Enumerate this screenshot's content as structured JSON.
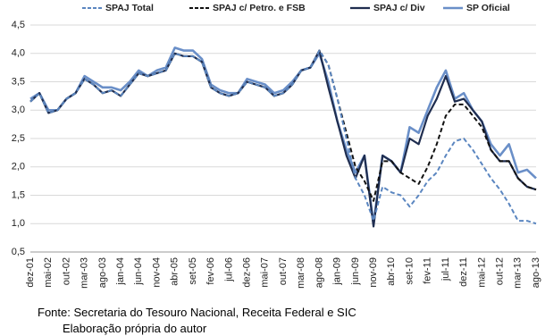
{
  "chart_data": {
    "type": "line",
    "categories": [
      "dez-01",
      null,
      "mai-02",
      null,
      "out-02",
      null,
      "mar-03",
      null,
      "ago-03",
      null,
      "jan-04",
      null,
      "jun-04",
      null,
      "nov-04",
      null,
      "abr-05",
      null,
      "set-05",
      null,
      "fev-06",
      null,
      "jul-06",
      null,
      "dez-06",
      null,
      "mai-07",
      null,
      "out-07",
      null,
      "mar-08",
      null,
      "ago-08",
      null,
      "jan-09",
      null,
      "jun-09",
      null,
      "nov-09",
      null,
      "abr-10",
      null,
      "set-10",
      null,
      "fev-11",
      null,
      "jul-11",
      null,
      "dez-11",
      null,
      "mai-12",
      null,
      "out-12",
      null,
      "mar-13",
      null,
      "ago-13"
    ],
    "series": [
      {
        "name": "SPAJ Total",
        "color": "#5b86c0",
        "dashed": true,
        "width": 2,
        "values": [
          3.15,
          3.3,
          2.95,
          3.0,
          3.2,
          3.3,
          3.55,
          3.45,
          3.3,
          3.35,
          3.25,
          3.45,
          3.65,
          3.6,
          3.65,
          3.7,
          4.0,
          3.95,
          3.95,
          3.85,
          3.4,
          3.3,
          3.25,
          3.3,
          3.5,
          3.45,
          3.4,
          3.25,
          3.3,
          3.45,
          3.7,
          3.75,
          4.05,
          3.8,
          3.2,
          2.5,
          1.8,
          1.5,
          1.05,
          1.65,
          1.55,
          1.5,
          1.3,
          1.5,
          1.75,
          1.9,
          2.2,
          2.45,
          2.5,
          2.3,
          2.05,
          1.8,
          1.6,
          1.35,
          1.05,
          1.05,
          1.0
        ]
      },
      {
        "name": "SPAJ c/ Petro. e FSB",
        "color": "#111111",
        "dashed": true,
        "width": 2,
        "values": [
          3.15,
          3.3,
          2.95,
          3.0,
          3.2,
          3.3,
          3.55,
          3.45,
          3.3,
          3.35,
          3.25,
          3.45,
          3.65,
          3.6,
          3.65,
          3.7,
          4.0,
          3.95,
          3.95,
          3.85,
          3.4,
          3.3,
          3.25,
          3.3,
          3.5,
          3.45,
          3.4,
          3.25,
          3.3,
          3.45,
          3.7,
          3.75,
          4.05,
          3.8,
          3.2,
          2.6,
          2.0,
          1.75,
          1.4,
          2.1,
          2.1,
          1.9,
          1.8,
          1.7,
          2.0,
          2.4,
          2.9,
          3.1,
          3.1,
          2.9,
          2.7,
          2.3,
          2.1,
          2.1,
          1.8,
          1.65,
          1.6
        ]
      },
      {
        "name": "SPAJ c/ Div",
        "color": "#1f2d4f",
        "dashed": false,
        "width": 2.2,
        "values": [
          3.15,
          3.3,
          2.95,
          3.0,
          3.2,
          3.3,
          3.55,
          3.45,
          3.3,
          3.35,
          3.25,
          3.45,
          3.65,
          3.6,
          3.65,
          3.7,
          4.0,
          3.95,
          3.95,
          3.85,
          3.4,
          3.3,
          3.25,
          3.3,
          3.5,
          3.45,
          3.4,
          3.25,
          3.3,
          3.45,
          3.7,
          3.75,
          4.05,
          3.4,
          2.8,
          2.2,
          1.8,
          2.2,
          0.95,
          2.2,
          2.1,
          1.9,
          2.5,
          2.4,
          2.9,
          3.2,
          3.6,
          3.15,
          3.2,
          3.0,
          2.8,
          2.3,
          2.1,
          2.1,
          1.8,
          1.65,
          1.6
        ]
      },
      {
        "name": "SP Oficial",
        "color": "#6a8fc8",
        "dashed": false,
        "width": 2.6,
        "values": [
          3.2,
          3.3,
          3.0,
          3.0,
          3.2,
          3.3,
          3.6,
          3.5,
          3.4,
          3.4,
          3.35,
          3.5,
          3.7,
          3.6,
          3.7,
          3.75,
          4.1,
          4.05,
          4.05,
          3.9,
          3.45,
          3.35,
          3.3,
          3.3,
          3.55,
          3.5,
          3.45,
          3.3,
          3.35,
          3.5,
          3.7,
          3.75,
          4.0,
          3.5,
          2.8,
          2.3,
          1.9,
          2.2,
          1.0,
          2.2,
          2.1,
          1.9,
          2.7,
          2.6,
          3.0,
          3.4,
          3.7,
          3.2,
          3.3,
          3.0,
          2.8,
          2.4,
          2.2,
          2.4,
          1.9,
          1.95,
          1.8
        ]
      }
    ],
    "ylim": [
      0.5,
      4.5
    ],
    "yticks": [
      {
        "value": 0.5,
        "label": "0,5"
      },
      {
        "value": 1.0,
        "label": "1,0"
      },
      {
        "value": 1.5,
        "label": "1,5"
      },
      {
        "value": 2.0,
        "label": "2,0"
      },
      {
        "value": 2.5,
        "label": "2,5"
      },
      {
        "value": 3.0,
        "label": "3,0"
      },
      {
        "value": 3.5,
        "label": "3,5"
      },
      {
        "value": 4.0,
        "label": "4,0"
      },
      {
        "value": 4.5,
        "label": "4,5"
      }
    ],
    "grid": true,
    "legend": "top"
  },
  "notes": [
    "Fonte: Secretaria do Tesouro Nacional, Receita Federal e SIC",
    "Elaboração própria do autor"
  ]
}
